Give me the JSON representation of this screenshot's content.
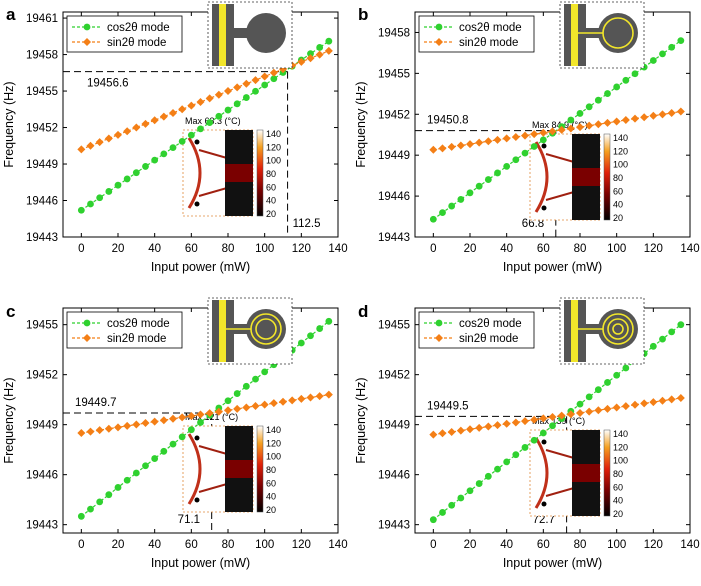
{
  "colors": {
    "cos": "#2fd12f",
    "sin": "#f47f16",
    "axis": "#000000",
    "device_dark": "#555555",
    "device_gold": "#f2e62a"
  },
  "chart_data": [
    {
      "type": "line",
      "panel": "a",
      "xlabel": "Input power (mW)",
      "ylabel": "Frequency (Hz)",
      "xlim": [
        -10,
        140
      ],
      "ylim": [
        19443,
        19461.5
      ],
      "xticks": [
        0,
        20,
        40,
        60,
        80,
        100,
        120,
        140
      ],
      "yticks": [
        19443,
        19446,
        19449,
        19452,
        19455,
        19458,
        19461
      ],
      "x": [
        0,
        5,
        10,
        15,
        20,
        25,
        30,
        35,
        40,
        45,
        50,
        55,
        60,
        65,
        70,
        75,
        80,
        85,
        90,
        95,
        100,
        105,
        110,
        115,
        120,
        125,
        130,
        135
      ],
      "series": [
        {
          "name": "cos2θ mode",
          "start": 19445.2,
          "end": 19459.1
        },
        {
          "name": "sin2θ mode",
          "start": 19450.2,
          "end": 19458.3
        }
      ],
      "crossing": {
        "x": 112.5,
        "y": 19456.6,
        "x_label": "112.5",
        "y_label": "19456.6"
      },
      "inset": {
        "max_label": "Max 63.3 (°C)",
        "scale": [
          "140",
          "120",
          "100",
          "80",
          "60",
          "40",
          "20"
        ]
      },
      "device": "disk"
    },
    {
      "type": "line",
      "panel": "b",
      "xlabel": "Input power (mW)",
      "ylabel": "Frequency (Hz)",
      "xlim": [
        -10,
        140
      ],
      "ylim": [
        19443,
        19459.5
      ],
      "xticks": [
        0,
        20,
        40,
        60,
        80,
        100,
        120,
        140
      ],
      "yticks": [
        19443,
        19446,
        19449,
        19452,
        19455,
        19458
      ],
      "x": [
        0,
        5,
        10,
        15,
        20,
        25,
        30,
        35,
        40,
        45,
        50,
        55,
        60,
        65,
        70,
        75,
        80,
        85,
        90,
        95,
        100,
        105,
        110,
        115,
        120,
        125,
        130,
        135
      ],
      "series": [
        {
          "name": "cos2θ mode",
          "start": 19444.3,
          "end": 19457.4
        },
        {
          "name": "sin2θ mode",
          "start": 19449.4,
          "end": 19452.2
        }
      ],
      "crossing": {
        "x": 66.8,
        "y": 19450.8,
        "x_label": "66.8",
        "y_label": "19450.8"
      },
      "inset": {
        "max_label": "Max 84.9 (°C)",
        "scale": [
          "140",
          "120",
          "100",
          "80",
          "60",
          "40",
          "20"
        ]
      },
      "device": "ring1"
    },
    {
      "type": "line",
      "panel": "c",
      "xlabel": "Input power (mW)",
      "ylabel": "Frequency (Hz)",
      "xlim": [
        -10,
        140
      ],
      "ylim": [
        19442.5,
        19456
      ],
      "xticks": [
        0,
        20,
        40,
        60,
        80,
        100,
        120,
        140
      ],
      "yticks": [
        19443,
        19446,
        19449,
        19452,
        19455
      ],
      "x": [
        0,
        5,
        10,
        15,
        20,
        25,
        30,
        35,
        40,
        45,
        50,
        55,
        60,
        65,
        70,
        75,
        80,
        85,
        90,
        95,
        100,
        105,
        110,
        115,
        120,
        125,
        130,
        135
      ],
      "series": [
        {
          "name": "cos2θ mode",
          "start": 19443.5,
          "end": 19455.2
        },
        {
          "name": "sin2θ mode",
          "start": 19448.5,
          "end": 19450.8
        }
      ],
      "crossing": {
        "x": 71.1,
        "y": 19449.7,
        "x_label": "71.1",
        "y_label": "19449.7"
      },
      "inset": {
        "max_label": "Max 121 (°C)",
        "scale": [
          "140",
          "120",
          "100",
          "80",
          "60",
          "40",
          "20"
        ]
      },
      "device": "ring2"
    },
    {
      "type": "line",
      "panel": "d",
      "xlabel": "Input power (mW)",
      "ylabel": "Frequency (Hz)",
      "xlim": [
        -10,
        140
      ],
      "ylim": [
        19442.5,
        19456
      ],
      "xticks": [
        0,
        20,
        40,
        60,
        80,
        100,
        120,
        140
      ],
      "yticks": [
        19443,
        19446,
        19449,
        19452,
        19455
      ],
      "x": [
        0,
        5,
        10,
        15,
        20,
        25,
        30,
        35,
        40,
        45,
        50,
        55,
        60,
        65,
        70,
        75,
        80,
        85,
        90,
        95,
        100,
        105,
        110,
        115,
        120,
        125,
        130,
        135
      ],
      "series": [
        {
          "name": "cos2θ mode",
          "start": 19443.3,
          "end": 19455.0
        },
        {
          "name": "sin2θ mode",
          "start": 19448.4,
          "end": 19450.6
        }
      ],
      "crossing": {
        "x": 72.7,
        "y": 19449.5,
        "x_label": "72.7",
        "y_label": "19449.5"
      },
      "inset": {
        "max_label": "Max 139 (°C)",
        "scale": [
          "140",
          "120",
          "100",
          "80",
          "60",
          "40",
          "20"
        ]
      },
      "device": "ring3"
    }
  ]
}
